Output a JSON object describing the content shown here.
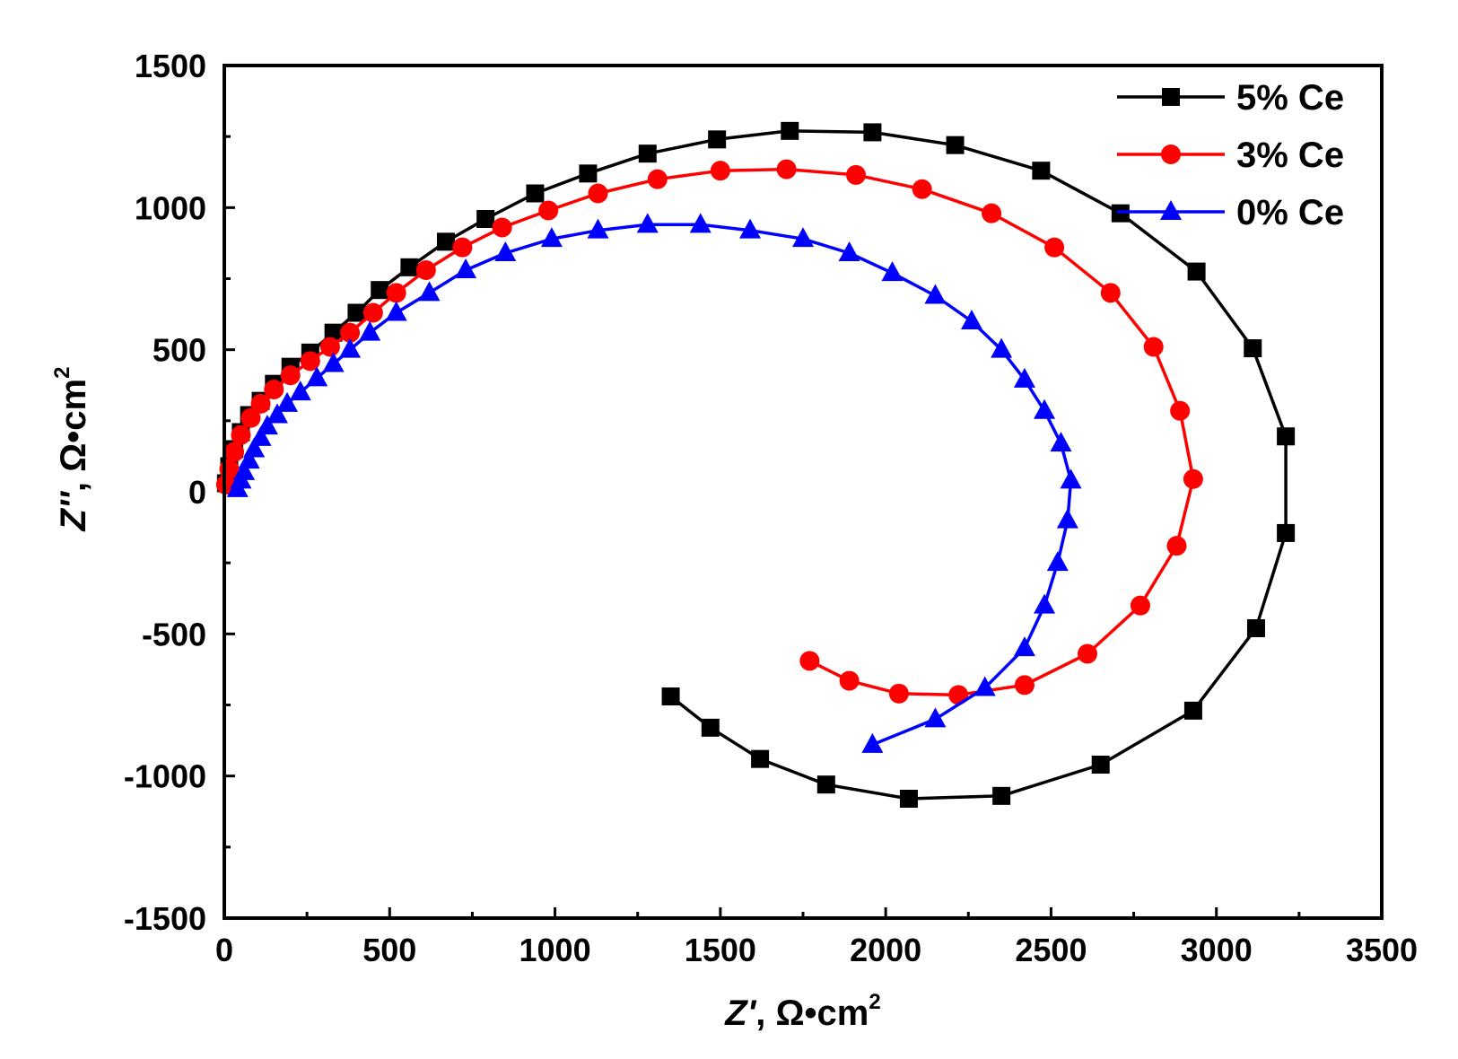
{
  "chart_data": {
    "type": "line",
    "title": "",
    "xlabel": {
      "italic": "Z'",
      "rest": ", Ω•cm",
      "sup": "2"
    },
    "ylabel": {
      "italic": "Z''",
      "rest": ", Ω•cm",
      "sup": "2"
    },
    "xlim": [
      0,
      3500
    ],
    "ylim": [
      -1500,
      1500
    ],
    "x_ticks": [
      0,
      500,
      1000,
      1500,
      2000,
      2500,
      3000,
      3500
    ],
    "y_ticks": [
      -1500,
      -1000,
      -500,
      0,
      500,
      1000,
      1500
    ],
    "x_tick_labels": [
      "0",
      "500",
      "1000",
      "1500",
      "2000",
      "2500",
      "3000",
      "3500"
    ],
    "y_tick_labels": [
      "-1500",
      "-1000",
      "-500",
      "0",
      "500",
      "1000",
      "1500"
    ],
    "legend_position": "top-right",
    "series": [
      {
        "name": "5% Ce",
        "color": "#000000",
        "marker": "square",
        "points": [
          [
            5,
            30
          ],
          [
            15,
            90
          ],
          [
            30,
            150
          ],
          [
            50,
            210
          ],
          [
            75,
            270
          ],
          [
            110,
            320
          ],
          [
            150,
            380
          ],
          [
            200,
            440
          ],
          [
            260,
            490
          ],
          [
            330,
            560
          ],
          [
            400,
            630
          ],
          [
            470,
            710
          ],
          [
            560,
            790
          ],
          [
            670,
            880
          ],
          [
            790,
            960
          ],
          [
            940,
            1050
          ],
          [
            1100,
            1120
          ],
          [
            1280,
            1190
          ],
          [
            1490,
            1240
          ],
          [
            1710,
            1270
          ],
          [
            1960,
            1265
          ],
          [
            2210,
            1220
          ],
          [
            2470,
            1130
          ],
          [
            2710,
            980
          ],
          [
            2940,
            775
          ],
          [
            3110,
            505
          ],
          [
            3210,
            195
          ],
          [
            3210,
            -145
          ],
          [
            3120,
            -480
          ],
          [
            2930,
            -770
          ],
          [
            2650,
            -960
          ],
          [
            2350,
            -1070
          ],
          [
            2070,
            -1080
          ],
          [
            1820,
            -1030
          ],
          [
            1620,
            -940
          ],
          [
            1470,
            -830
          ],
          [
            1350,
            -720
          ]
        ]
      },
      {
        "name": "3% Ce",
        "color": "#ff0000",
        "marker": "circle",
        "points": [
          [
            5,
            25
          ],
          [
            15,
            80
          ],
          [
            30,
            140
          ],
          [
            50,
            200
          ],
          [
            80,
            260
          ],
          [
            110,
            310
          ],
          [
            150,
            360
          ],
          [
            200,
            410
          ],
          [
            260,
            460
          ],
          [
            320,
            510
          ],
          [
            380,
            560
          ],
          [
            450,
            630
          ],
          [
            520,
            700
          ],
          [
            610,
            780
          ],
          [
            720,
            860
          ],
          [
            840,
            930
          ],
          [
            980,
            990
          ],
          [
            1130,
            1050
          ],
          [
            1310,
            1100
          ],
          [
            1500,
            1130
          ],
          [
            1700,
            1135
          ],
          [
            1910,
            1115
          ],
          [
            2110,
            1065
          ],
          [
            2320,
            980
          ],
          [
            2510,
            860
          ],
          [
            2680,
            700
          ],
          [
            2810,
            510
          ],
          [
            2890,
            285
          ],
          [
            2930,
            45
          ],
          [
            2880,
            -190
          ],
          [
            2770,
            -400
          ],
          [
            2610,
            -570
          ],
          [
            2420,
            -680
          ],
          [
            2220,
            -715
          ],
          [
            2040,
            -710
          ],
          [
            1890,
            -665
          ],
          [
            1770,
            -595
          ]
        ]
      },
      {
        "name": "0% Ce",
        "color": "#0000ff",
        "marker": "triangle",
        "points": [
          [
            40,
            10
          ],
          [
            50,
            40
          ],
          [
            60,
            70
          ],
          [
            75,
            110
          ],
          [
            90,
            150
          ],
          [
            110,
            190
          ],
          [
            130,
            230
          ],
          [
            160,
            270
          ],
          [
            190,
            310
          ],
          [
            230,
            350
          ],
          [
            280,
            400
          ],
          [
            330,
            450
          ],
          [
            380,
            500
          ],
          [
            440,
            560
          ],
          [
            520,
            630
          ],
          [
            620,
            700
          ],
          [
            730,
            780
          ],
          [
            850,
            840
          ],
          [
            990,
            890
          ],
          [
            1130,
            920
          ],
          [
            1280,
            940
          ],
          [
            1440,
            940
          ],
          [
            1590,
            920
          ],
          [
            1750,
            890
          ],
          [
            1890,
            840
          ],
          [
            2020,
            770
          ],
          [
            2150,
            690
          ],
          [
            2260,
            600
          ],
          [
            2350,
            500
          ],
          [
            2420,
            395
          ],
          [
            2480,
            285
          ],
          [
            2530,
            170
          ],
          [
            2560,
            40
          ],
          [
            2550,
            -100
          ],
          [
            2520,
            -250
          ],
          [
            2480,
            -400
          ],
          [
            2420,
            -550
          ],
          [
            2300,
            -690
          ],
          [
            2150,
            -800
          ],
          [
            1960,
            -890
          ]
        ]
      }
    ]
  }
}
